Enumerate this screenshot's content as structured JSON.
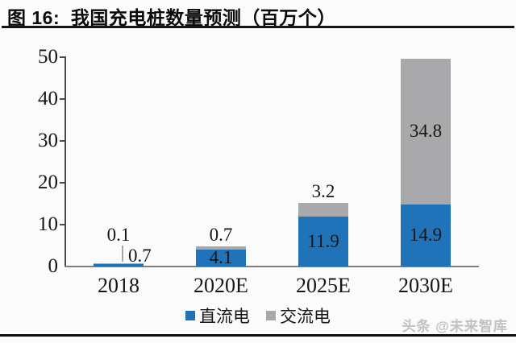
{
  "title": "图 16:  我国充电桩数量预测（百万个）",
  "watermark": "头条 @未来智库",
  "chart_data": {
    "type": "stacked-bar",
    "title": "我国充电桩数量预测（百万个）",
    "categories": [
      "2018",
      "2020E",
      "2025E",
      "2030E"
    ],
    "series": [
      {
        "name": "直流电",
        "color": "#2173B9",
        "values": [
          0.7,
          4.1,
          11.9,
          14.9
        ],
        "label_pos": [
          "right-of-leader",
          "inside",
          "inside",
          "inside"
        ]
      },
      {
        "name": "交流电",
        "color": "#A9A9AC",
        "values": [
          0.1,
          0.7,
          3.2,
          34.8
        ],
        "label_pos": [
          "above-leader",
          "above",
          "above",
          "inside"
        ]
      }
    ],
    "ylim": [
      0,
      50
    ],
    "yticks": [
      0,
      10,
      20,
      30,
      40,
      50
    ],
    "xlabel": "",
    "ylabel": "",
    "grid": false,
    "legend_position": "bottom-center"
  }
}
